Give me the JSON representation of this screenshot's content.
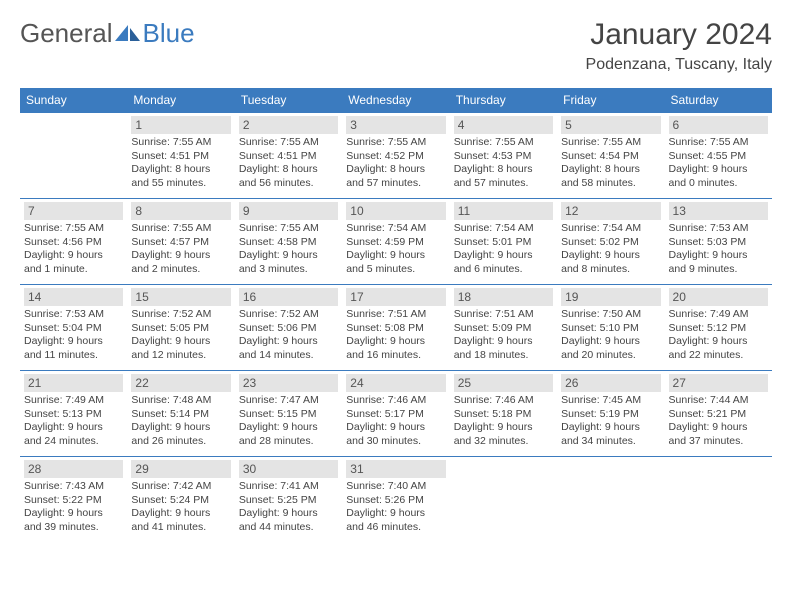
{
  "brand": {
    "part1": "General",
    "part2": "Blue"
  },
  "title": {
    "month": "January 2024",
    "location": "Podenzana, Tuscany, Italy"
  },
  "colors": {
    "accent": "#3b7bbf",
    "dayHeaderBg": "#e4e4e4",
    "text": "#444444"
  },
  "dayNames": [
    "Sunday",
    "Monday",
    "Tuesday",
    "Wednesday",
    "Thursday",
    "Friday",
    "Saturday"
  ],
  "weeks": [
    [
      null,
      {
        "n": "1",
        "sr": "Sunrise: 7:55 AM",
        "ss": "Sunset: 4:51 PM",
        "d1": "Daylight: 8 hours",
        "d2": "and 55 minutes."
      },
      {
        "n": "2",
        "sr": "Sunrise: 7:55 AM",
        "ss": "Sunset: 4:51 PM",
        "d1": "Daylight: 8 hours",
        "d2": "and 56 minutes."
      },
      {
        "n": "3",
        "sr": "Sunrise: 7:55 AM",
        "ss": "Sunset: 4:52 PM",
        "d1": "Daylight: 8 hours",
        "d2": "and 57 minutes."
      },
      {
        "n": "4",
        "sr": "Sunrise: 7:55 AM",
        "ss": "Sunset: 4:53 PM",
        "d1": "Daylight: 8 hours",
        "d2": "and 57 minutes."
      },
      {
        "n": "5",
        "sr": "Sunrise: 7:55 AM",
        "ss": "Sunset: 4:54 PM",
        "d1": "Daylight: 8 hours",
        "d2": "and 58 minutes."
      },
      {
        "n": "6",
        "sr": "Sunrise: 7:55 AM",
        "ss": "Sunset: 4:55 PM",
        "d1": "Daylight: 9 hours",
        "d2": "and 0 minutes."
      }
    ],
    [
      {
        "n": "7",
        "sr": "Sunrise: 7:55 AM",
        "ss": "Sunset: 4:56 PM",
        "d1": "Daylight: 9 hours",
        "d2": "and 1 minute."
      },
      {
        "n": "8",
        "sr": "Sunrise: 7:55 AM",
        "ss": "Sunset: 4:57 PM",
        "d1": "Daylight: 9 hours",
        "d2": "and 2 minutes."
      },
      {
        "n": "9",
        "sr": "Sunrise: 7:55 AM",
        "ss": "Sunset: 4:58 PM",
        "d1": "Daylight: 9 hours",
        "d2": "and 3 minutes."
      },
      {
        "n": "10",
        "sr": "Sunrise: 7:54 AM",
        "ss": "Sunset: 4:59 PM",
        "d1": "Daylight: 9 hours",
        "d2": "and 5 minutes."
      },
      {
        "n": "11",
        "sr": "Sunrise: 7:54 AM",
        "ss": "Sunset: 5:01 PM",
        "d1": "Daylight: 9 hours",
        "d2": "and 6 minutes."
      },
      {
        "n": "12",
        "sr": "Sunrise: 7:54 AM",
        "ss": "Sunset: 5:02 PM",
        "d1": "Daylight: 9 hours",
        "d2": "and 8 minutes."
      },
      {
        "n": "13",
        "sr": "Sunrise: 7:53 AM",
        "ss": "Sunset: 5:03 PM",
        "d1": "Daylight: 9 hours",
        "d2": "and 9 minutes."
      }
    ],
    [
      {
        "n": "14",
        "sr": "Sunrise: 7:53 AM",
        "ss": "Sunset: 5:04 PM",
        "d1": "Daylight: 9 hours",
        "d2": "and 11 minutes."
      },
      {
        "n": "15",
        "sr": "Sunrise: 7:52 AM",
        "ss": "Sunset: 5:05 PM",
        "d1": "Daylight: 9 hours",
        "d2": "and 12 minutes."
      },
      {
        "n": "16",
        "sr": "Sunrise: 7:52 AM",
        "ss": "Sunset: 5:06 PM",
        "d1": "Daylight: 9 hours",
        "d2": "and 14 minutes."
      },
      {
        "n": "17",
        "sr": "Sunrise: 7:51 AM",
        "ss": "Sunset: 5:08 PM",
        "d1": "Daylight: 9 hours",
        "d2": "and 16 minutes."
      },
      {
        "n": "18",
        "sr": "Sunrise: 7:51 AM",
        "ss": "Sunset: 5:09 PM",
        "d1": "Daylight: 9 hours",
        "d2": "and 18 minutes."
      },
      {
        "n": "19",
        "sr": "Sunrise: 7:50 AM",
        "ss": "Sunset: 5:10 PM",
        "d1": "Daylight: 9 hours",
        "d2": "and 20 minutes."
      },
      {
        "n": "20",
        "sr": "Sunrise: 7:49 AM",
        "ss": "Sunset: 5:12 PM",
        "d1": "Daylight: 9 hours",
        "d2": "and 22 minutes."
      }
    ],
    [
      {
        "n": "21",
        "sr": "Sunrise: 7:49 AM",
        "ss": "Sunset: 5:13 PM",
        "d1": "Daylight: 9 hours",
        "d2": "and 24 minutes."
      },
      {
        "n": "22",
        "sr": "Sunrise: 7:48 AM",
        "ss": "Sunset: 5:14 PM",
        "d1": "Daylight: 9 hours",
        "d2": "and 26 minutes."
      },
      {
        "n": "23",
        "sr": "Sunrise: 7:47 AM",
        "ss": "Sunset: 5:15 PM",
        "d1": "Daylight: 9 hours",
        "d2": "and 28 minutes."
      },
      {
        "n": "24",
        "sr": "Sunrise: 7:46 AM",
        "ss": "Sunset: 5:17 PM",
        "d1": "Daylight: 9 hours",
        "d2": "and 30 minutes."
      },
      {
        "n": "25",
        "sr": "Sunrise: 7:46 AM",
        "ss": "Sunset: 5:18 PM",
        "d1": "Daylight: 9 hours",
        "d2": "and 32 minutes."
      },
      {
        "n": "26",
        "sr": "Sunrise: 7:45 AM",
        "ss": "Sunset: 5:19 PM",
        "d1": "Daylight: 9 hours",
        "d2": "and 34 minutes."
      },
      {
        "n": "27",
        "sr": "Sunrise: 7:44 AM",
        "ss": "Sunset: 5:21 PM",
        "d1": "Daylight: 9 hours",
        "d2": "and 37 minutes."
      }
    ],
    [
      {
        "n": "28",
        "sr": "Sunrise: 7:43 AM",
        "ss": "Sunset: 5:22 PM",
        "d1": "Daylight: 9 hours",
        "d2": "and 39 minutes."
      },
      {
        "n": "29",
        "sr": "Sunrise: 7:42 AM",
        "ss": "Sunset: 5:24 PM",
        "d1": "Daylight: 9 hours",
        "d2": "and 41 minutes."
      },
      {
        "n": "30",
        "sr": "Sunrise: 7:41 AM",
        "ss": "Sunset: 5:25 PM",
        "d1": "Daylight: 9 hours",
        "d2": "and 44 minutes."
      },
      {
        "n": "31",
        "sr": "Sunrise: 7:40 AM",
        "ss": "Sunset: 5:26 PM",
        "d1": "Daylight: 9 hours",
        "d2": "and 46 minutes."
      },
      null,
      null,
      null
    ]
  ]
}
